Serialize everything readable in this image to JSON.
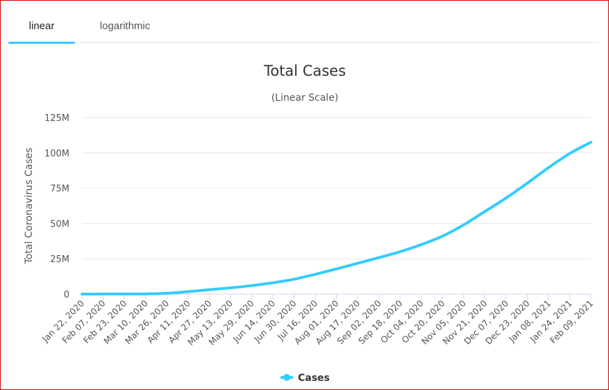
{
  "tabs": [
    {
      "label": "linear",
      "active": true
    },
    {
      "label": "logarithmic",
      "active": false
    }
  ],
  "colors": {
    "accent": "#33ccff",
    "frame": "#cc0000",
    "grid": "#e6e6e6"
  },
  "chart_data": {
    "type": "line",
    "title": "Total Cases",
    "subtitle": "(Linear Scale)",
    "ylabel": "Total Coronavirus Cases",
    "xlabel": "",
    "ylim": [
      0,
      125000000
    ],
    "y_ticks": [
      0,
      25000000,
      50000000,
      75000000,
      100000000,
      125000000
    ],
    "y_tick_labels": [
      "0",
      "25M",
      "50M",
      "75M",
      "100M",
      "125M"
    ],
    "grid": true,
    "legend_position": "bottom-center",
    "categories": [
      "Jan 22, 2020",
      "Feb 07, 2020",
      "Feb 23, 2020",
      "Mar 10, 2020",
      "Mar 26, 2020",
      "Apr 11, 2020",
      "Apr 27, 2020",
      "May 13, 2020",
      "May 29, 2020",
      "Jun 14, 2020",
      "Jun 30, 2020",
      "Jul 16, 2020",
      "Aug 01, 2020",
      "Aug 17, 2020",
      "Sep 02, 2020",
      "Sep 18, 2020",
      "Oct 04, 2020",
      "Oct 20, 2020",
      "Nov 05, 2020",
      "Nov 21, 2020",
      "Dec 07, 2020",
      "Dec 23, 2020",
      "Jan 08, 2021",
      "Jan 24, 2021",
      "Feb 09, 2021"
    ],
    "series": [
      {
        "name": "Cases",
        "color": "#33ccff",
        "values": [
          557,
          34000,
          79000,
          120000,
          530000,
          1700000,
          3100000,
          4400000,
          6000000,
          8000000,
          10500000,
          14000000,
          17800000,
          21800000,
          25800000,
          30000000,
          35000000,
          41000000,
          49000000,
          58500000,
          68000000,
          78500000,
          89500000,
          99500000,
          107500000
        ]
      }
    ]
  }
}
